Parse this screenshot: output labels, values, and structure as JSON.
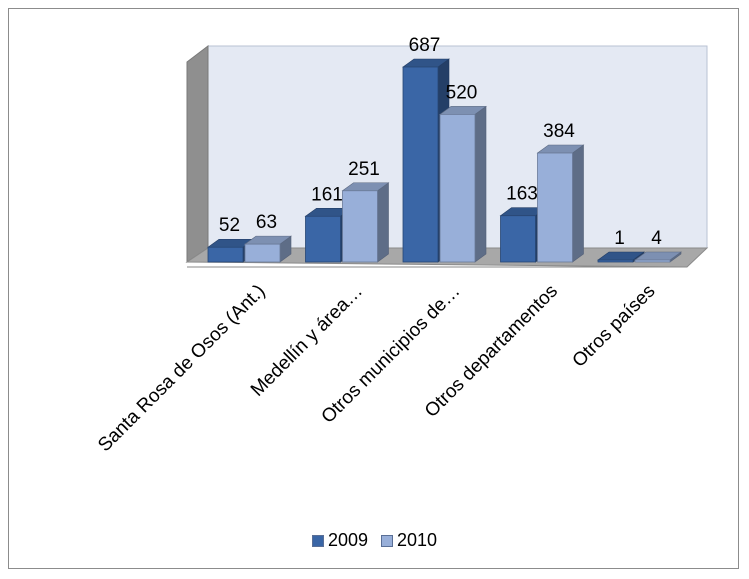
{
  "chart_data": {
    "type": "bar",
    "categories": [
      "Santa Rosa de Osos (Ant.)",
      "Medellín y área…",
      "Otros municipios de…",
      "Otros departamentos",
      "Otros países"
    ],
    "series": [
      {
        "name": "2009",
        "values": [
          52,
          161,
          687,
          163,
          1
        ],
        "color": "#3a66a6"
      },
      {
        "name": "2010",
        "values": [
          63,
          251,
          520,
          384,
          4
        ],
        "color": "#98afd9"
      }
    ],
    "ylim": [
      0,
      720
    ],
    "legend_position": "bottom",
    "grid": false,
    "style": "3d-clustered-column"
  }
}
